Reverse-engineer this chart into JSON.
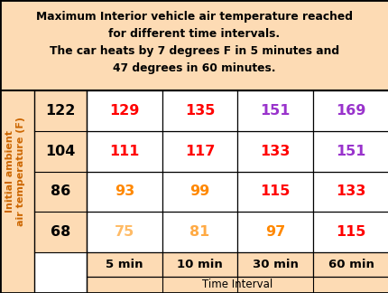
{
  "title_line1": "Maximum Interior vehicle air temperature reached",
  "title_line2": "for different time intervals.",
  "title_line3": "The car heats by 7 degrees F in 5 minutes and",
  "title_line4": "47 degrees in 60 minutes.",
  "bg_color": "#FDDBB4",
  "cell_bg": "#FFFFFF",
  "row_labels": [
    "122",
    "104",
    "86",
    "68"
  ],
  "col_labels": [
    "5 min",
    "10 min",
    "30 min",
    "60 min"
  ],
  "ylabel": "Initial ambient\nair temperature (F)",
  "xlabel": "Time Interval",
  "data": [
    [
      "129",
      "135",
      "151",
      "169"
    ],
    [
      "111",
      "117",
      "133",
      "151"
    ],
    [
      "93",
      "99",
      "115",
      "133"
    ],
    [
      "75",
      "81",
      "97",
      "115"
    ]
  ],
  "data_colors": [
    [
      "#FF0000",
      "#FF0000",
      "#9933CC",
      "#9933CC"
    ],
    [
      "#FF0000",
      "#FF0000",
      "#FF0000",
      "#9933CC"
    ],
    [
      "#FF8800",
      "#FF8800",
      "#FF0000",
      "#FF0000"
    ],
    [
      "#FFBB66",
      "#FFAA44",
      "#FF8800",
      "#FF0000"
    ]
  ],
  "row_label_color": "#000000",
  "col_label_color": "#000000",
  "border_color": "#000000",
  "title_color": "#000000",
  "ylabel_color": "#CC6600"
}
